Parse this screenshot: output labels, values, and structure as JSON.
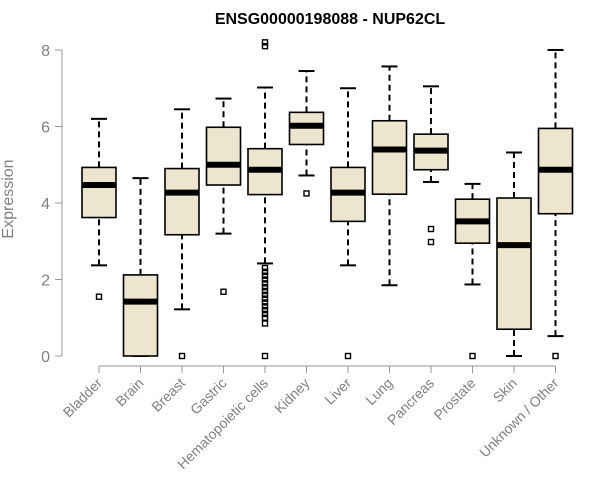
{
  "chart_data": {
    "type": "boxplot",
    "title": "ENSG00000198088 - NUP62CL",
    "xlabel": "",
    "ylabel": "Expression",
    "ylim": [
      0,
      8
    ],
    "yticks": [
      "0",
      "2",
      "4",
      "6",
      "8"
    ],
    "grid": false,
    "box_fill": "#ede6cf",
    "categories": [
      "Bladder",
      "Brain",
      "Breast",
      "Gastric",
      "Hematopoietic cells",
      "Kidney",
      "Liver",
      "Lung",
      "Pancreas",
      "Prostate",
      "Skin",
      "Unknown / Other"
    ],
    "boxes": [
      {
        "q1": 3.62,
        "median": 4.47,
        "q3": 4.93,
        "whisker_low": 2.37,
        "whisker_high": 6.2,
        "outliers": [
          1.55
        ]
      },
      {
        "q1": 0.0,
        "median": 1.42,
        "q3": 2.12,
        "whisker_low": 0.0,
        "whisker_high": 4.65,
        "outliers": []
      },
      {
        "q1": 3.17,
        "median": 4.27,
        "q3": 4.9,
        "whisker_low": 1.22,
        "whisker_high": 6.45,
        "outliers": [
          0.0
        ]
      },
      {
        "q1": 4.47,
        "median": 5.0,
        "q3": 5.98,
        "whisker_low": 3.2,
        "whisker_high": 6.73,
        "outliers": [
          1.68
        ]
      },
      {
        "q1": 4.22,
        "median": 4.87,
        "q3": 5.42,
        "whisker_low": 2.42,
        "whisker_high": 7.02,
        "outliers": [
          8.1,
          8.2,
          2.3,
          2.2,
          2.1,
          2.0,
          1.9,
          1.8,
          1.7,
          1.6,
          1.5,
          1.4,
          1.3,
          1.2,
          1.1,
          1.0,
          0.85,
          0.0
        ]
      },
      {
        "q1": 5.53,
        "median": 6.02,
        "q3": 6.37,
        "whisker_low": 4.72,
        "whisker_high": 7.45,
        "outliers": [
          4.25
        ]
      },
      {
        "q1": 3.52,
        "median": 4.27,
        "q3": 4.93,
        "whisker_low": 2.37,
        "whisker_high": 7.0,
        "outliers": [
          0.0
        ]
      },
      {
        "q1": 4.23,
        "median": 5.4,
        "q3": 6.15,
        "whisker_low": 1.85,
        "whisker_high": 7.57,
        "outliers": []
      },
      {
        "q1": 4.87,
        "median": 5.37,
        "q3": 5.8,
        "whisker_low": 4.55,
        "whisker_high": 7.05,
        "outliers": [
          3.32,
          2.98
        ]
      },
      {
        "q1": 2.95,
        "median": 3.52,
        "q3": 4.1,
        "whisker_low": 1.87,
        "whisker_high": 4.5,
        "outliers": [
          0.0
        ]
      },
      {
        "q1": 0.7,
        "median": 2.9,
        "q3": 4.13,
        "whisker_low": 0.0,
        "whisker_high": 5.32,
        "outliers": []
      },
      {
        "q1": 3.72,
        "median": 4.87,
        "q3": 5.95,
        "whisker_low": 0.52,
        "whisker_high": 8.0,
        "outliers": [
          0.0
        ]
      }
    ]
  }
}
